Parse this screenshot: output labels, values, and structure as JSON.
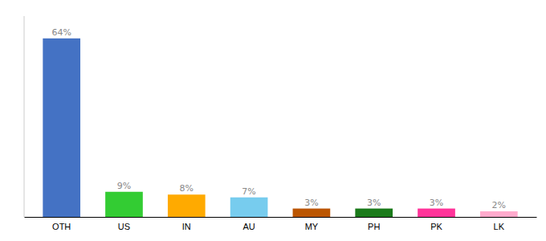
{
  "chart_data": {
    "type": "bar",
    "categories": [
      "OTH",
      "US",
      "IN",
      "AU",
      "MY",
      "PH",
      "PK",
      "LK"
    ],
    "values": [
      64,
      9,
      8,
      7,
      3,
      3,
      3,
      2
    ],
    "value_labels": [
      "64%",
      "9%",
      "8%",
      "7%",
      "3%",
      "3%",
      "3%",
      "2%"
    ],
    "colors": [
      "#4472c4",
      "#33cc33",
      "#ffaa00",
      "#77ccee",
      "#bb5500",
      "#1a7a1a",
      "#ff3399",
      "#ffaacc"
    ],
    "ylim": [
      0,
      72
    ],
    "grid": false,
    "data_labels": true,
    "tick_labels": "x"
  }
}
